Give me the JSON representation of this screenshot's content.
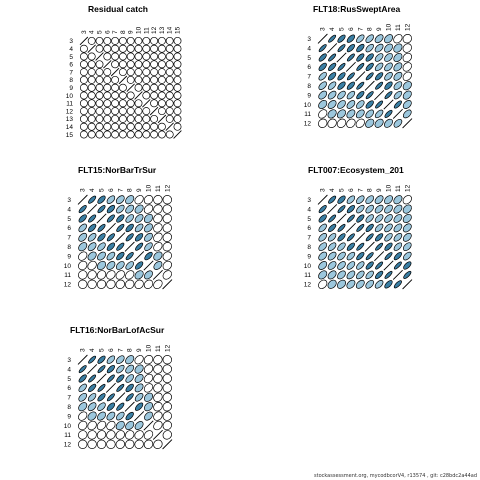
{
  "chart_data": [
    {
      "type": "heatmap",
      "title": "Residual catch",
      "ages": [
        "3",
        "4",
        "5",
        "6",
        "7",
        "8",
        "9",
        "10",
        "11",
        "12",
        "13",
        "14",
        "15"
      ],
      "matrix": [
        [
          1,
          0.0,
          0.0,
          0.0,
          0.0,
          0.0,
          0.0,
          0.0,
          0.0,
          0.0,
          0.0,
          0.0,
          0.0
        ],
        [
          0.0,
          1,
          0.0,
          0.0,
          0.0,
          0.0,
          0.0,
          0.0,
          0.0,
          0.0,
          0.0,
          0.0,
          0.0
        ],
        [
          0.0,
          0.0,
          1,
          0.0,
          0.0,
          0.0,
          0.0,
          0.0,
          0.0,
          0.0,
          0.0,
          0.0,
          0.0
        ],
        [
          0.0,
          0.0,
          0.0,
          1,
          0.0,
          0.0,
          0.0,
          0.0,
          0.0,
          0.0,
          0.0,
          0.0,
          0.0
        ],
        [
          0.0,
          0.0,
          0.0,
          0.0,
          1,
          0.0,
          0.0,
          0.0,
          0.0,
          0.0,
          0.0,
          0.0,
          0.0
        ],
        [
          0.0,
          0.0,
          0.0,
          0.0,
          0.0,
          1,
          0.0,
          0.0,
          0.0,
          0.0,
          0.0,
          0.0,
          0.0
        ],
        [
          0.0,
          0.0,
          0.0,
          0.0,
          0.0,
          0.0,
          1,
          0.0,
          0.0,
          0.0,
          0.0,
          0.0,
          0.0
        ],
        [
          0.0,
          0.0,
          0.0,
          0.0,
          0.0,
          0.0,
          0.0,
          1,
          0.0,
          0.0,
          0.0,
          0.0,
          0.0
        ],
        [
          0.0,
          0.0,
          0.0,
          0.0,
          0.0,
          0.0,
          0.0,
          0.0,
          1,
          0.0,
          0.0,
          0.0,
          0.0
        ],
        [
          0.0,
          0.0,
          0.0,
          0.0,
          0.0,
          0.0,
          0.0,
          0.0,
          0.0,
          1,
          0.0,
          0.0,
          0.0
        ],
        [
          0.0,
          0.0,
          0.0,
          0.0,
          0.0,
          0.0,
          0.0,
          0.0,
          0.0,
          0.0,
          1,
          0.0,
          0.0
        ],
        [
          0.0,
          0.0,
          0.0,
          0.0,
          0.0,
          0.0,
          0.0,
          0.0,
          0.0,
          0.0,
          0.0,
          1,
          0.0
        ],
        [
          0.0,
          0.0,
          0.0,
          0.0,
          0.0,
          0.0,
          0.0,
          0.0,
          0.0,
          0.0,
          0.0,
          0.0,
          1
        ]
      ]
    },
    {
      "type": "heatmap",
      "title": "FLT18:RusSweptArea",
      "ages": [
        "3",
        "4",
        "5",
        "6",
        "7",
        "8",
        "9",
        "10",
        "11",
        "12"
      ],
      "matrix": [
        [
          1,
          0.85,
          0.75,
          0.7,
          0.65,
          0.6,
          0.5,
          0.4,
          0.3,
          0.1
        ],
        [
          0.85,
          1,
          0.85,
          0.75,
          0.7,
          0.65,
          0.55,
          0.45,
          0.35,
          0.15
        ],
        [
          0.75,
          0.85,
          1,
          0.85,
          0.75,
          0.7,
          0.6,
          0.5,
          0.4,
          0.2
        ],
        [
          0.7,
          0.75,
          0.85,
          1,
          0.85,
          0.75,
          0.65,
          0.55,
          0.45,
          0.25
        ],
        [
          0.65,
          0.7,
          0.75,
          0.85,
          1,
          0.85,
          0.75,
          0.6,
          0.5,
          0.3
        ],
        [
          0.6,
          0.65,
          0.7,
          0.75,
          0.85,
          1,
          0.85,
          0.7,
          0.55,
          0.35
        ],
        [
          0.5,
          0.55,
          0.6,
          0.65,
          0.75,
          0.85,
          1,
          0.85,
          0.65,
          0.4
        ],
        [
          0.4,
          0.45,
          0.5,
          0.55,
          0.6,
          0.7,
          0.85,
          1,
          0.8,
          0.45
        ],
        [
          0.3,
          0.35,
          0.4,
          0.45,
          0.5,
          0.55,
          0.65,
          0.8,
          1,
          0.55
        ],
        [
          0.1,
          0.15,
          0.2,
          0.25,
          0.3,
          0.35,
          0.4,
          0.45,
          0.55,
          1
        ]
      ]
    },
    {
      "type": "heatmap",
      "title": "FLT15:NorBarTrSur",
      "ages": [
        "3",
        "4",
        "5",
        "6",
        "7",
        "8",
        "9",
        "10",
        "11",
        "12"
      ],
      "matrix": [
        [
          1,
          0.8,
          0.7,
          0.6,
          0.5,
          0.4,
          0.3,
          0.15,
          0.05,
          0.0
        ],
        [
          0.8,
          1,
          0.8,
          0.7,
          0.6,
          0.5,
          0.4,
          0.25,
          0.1,
          0.0
        ],
        [
          0.7,
          0.8,
          1,
          0.8,
          0.7,
          0.6,
          0.5,
          0.35,
          0.15,
          0.05
        ],
        [
          0.6,
          0.7,
          0.8,
          1,
          0.8,
          0.7,
          0.6,
          0.45,
          0.2,
          0.05
        ],
        [
          0.5,
          0.6,
          0.7,
          0.8,
          1,
          0.8,
          0.7,
          0.5,
          0.25,
          0.1
        ],
        [
          0.4,
          0.5,
          0.6,
          0.7,
          0.8,
          1,
          0.8,
          0.6,
          0.3,
          0.1
        ],
        [
          0.3,
          0.4,
          0.5,
          0.6,
          0.7,
          0.8,
          1,
          0.7,
          0.35,
          0.15
        ],
        [
          0.15,
          0.25,
          0.35,
          0.45,
          0.5,
          0.6,
          0.7,
          1,
          0.45,
          0.2
        ],
        [
          0.05,
          0.1,
          0.15,
          0.2,
          0.25,
          0.3,
          0.35,
          0.45,
          1,
          0.25
        ],
        [
          0.0,
          0.0,
          0.05,
          0.05,
          0.1,
          0.1,
          0.15,
          0.2,
          0.25,
          1
        ]
      ]
    },
    {
      "type": "heatmap",
      "title": "FLT007:Ecosystem_201",
      "ages": [
        "3",
        "4",
        "5",
        "6",
        "7",
        "8",
        "9",
        "10",
        "11",
        "12"
      ],
      "matrix": [
        [
          1,
          0.8,
          0.7,
          0.65,
          0.6,
          0.55,
          0.5,
          0.45,
          0.4,
          0.3
        ],
        [
          0.8,
          1,
          0.85,
          0.75,
          0.65,
          0.6,
          0.55,
          0.5,
          0.45,
          0.35
        ],
        [
          0.7,
          0.85,
          1,
          0.85,
          0.75,
          0.65,
          0.6,
          0.55,
          0.5,
          0.4
        ],
        [
          0.65,
          0.75,
          0.85,
          1,
          0.85,
          0.75,
          0.65,
          0.6,
          0.55,
          0.45
        ],
        [
          0.6,
          0.65,
          0.75,
          0.85,
          1,
          0.85,
          0.75,
          0.65,
          0.6,
          0.5
        ],
        [
          0.55,
          0.6,
          0.65,
          0.75,
          0.85,
          1,
          0.85,
          0.75,
          0.65,
          0.55
        ],
        [
          0.5,
          0.55,
          0.6,
          0.65,
          0.75,
          0.85,
          1,
          0.85,
          0.75,
          0.6
        ],
        [
          0.45,
          0.5,
          0.55,
          0.6,
          0.65,
          0.75,
          0.85,
          1,
          0.85,
          0.7
        ],
        [
          0.4,
          0.45,
          0.5,
          0.55,
          0.6,
          0.65,
          0.75,
          0.85,
          1,
          0.8
        ],
        [
          0.3,
          0.35,
          0.4,
          0.45,
          0.5,
          0.55,
          0.6,
          0.7,
          0.8,
          1
        ]
      ]
    },
    {
      "type": "heatmap",
      "title": "FLT16:NorBarLofAcSur",
      "ages": [
        "3",
        "4",
        "5",
        "6",
        "7",
        "8",
        "9",
        "10",
        "11",
        "12"
      ],
      "matrix": [
        [
          1,
          0.85,
          0.75,
          0.65,
          0.55,
          0.4,
          0.3,
          0.15,
          0.05,
          0.0
        ],
        [
          0.85,
          1,
          0.85,
          0.75,
          0.65,
          0.5,
          0.35,
          0.2,
          0.05,
          0.0
        ],
        [
          0.75,
          0.85,
          1,
          0.85,
          0.75,
          0.6,
          0.45,
          0.25,
          0.1,
          0.0
        ],
        [
          0.65,
          0.75,
          0.85,
          1,
          0.85,
          0.7,
          0.5,
          0.3,
          0.1,
          0.0
        ],
        [
          0.55,
          0.65,
          0.75,
          0.85,
          1,
          0.8,
          0.6,
          0.35,
          0.15,
          0.05
        ],
        [
          0.4,
          0.5,
          0.6,
          0.7,
          0.8,
          1,
          0.7,
          0.4,
          0.15,
          0.05
        ],
        [
          0.3,
          0.35,
          0.45,
          0.5,
          0.6,
          0.7,
          1,
          0.45,
          0.2,
          0.05
        ],
        [
          0.15,
          0.2,
          0.25,
          0.3,
          0.35,
          0.4,
          0.45,
          1,
          0.25,
          0.1
        ],
        [
          0.05,
          0.05,
          0.1,
          0.1,
          0.15,
          0.15,
          0.2,
          0.25,
          1,
          0.1
        ],
        [
          0.0,
          0.0,
          0.0,
          0.0,
          0.05,
          0.05,
          0.05,
          0.1,
          0.1,
          1
        ]
      ]
    }
  ],
  "colors": {
    "strong": "#3a7ea3",
    "medium": "#9cc7dd",
    "weak": "#ffffff",
    "stroke": "#000000"
  },
  "footer_text": "stockassessment.org, mycodbcorV4, r13574 ,  git: c28bdc2a44ad"
}
